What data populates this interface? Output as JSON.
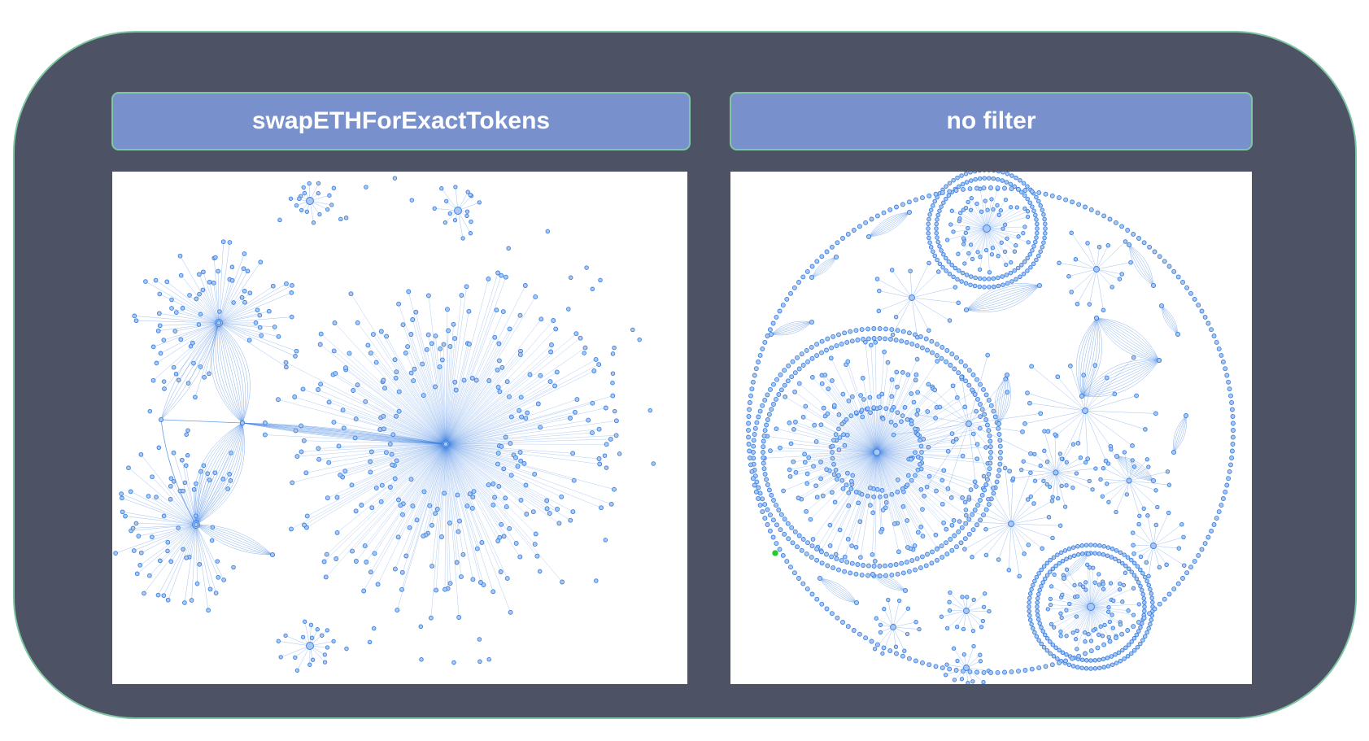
{
  "panels": [
    {
      "header": "swapETHForExactTokens"
    },
    {
      "header": "no filter"
    }
  ],
  "colors": {
    "frame": "#4d5365",
    "frame_border": "#7fc7a3",
    "header_fill": "#7890cc",
    "edge": "#3b7fe0",
    "node_fill": "#a9c8f3",
    "node_stroke": "#3b7fe0",
    "highlight_node": "#22cc22"
  }
}
